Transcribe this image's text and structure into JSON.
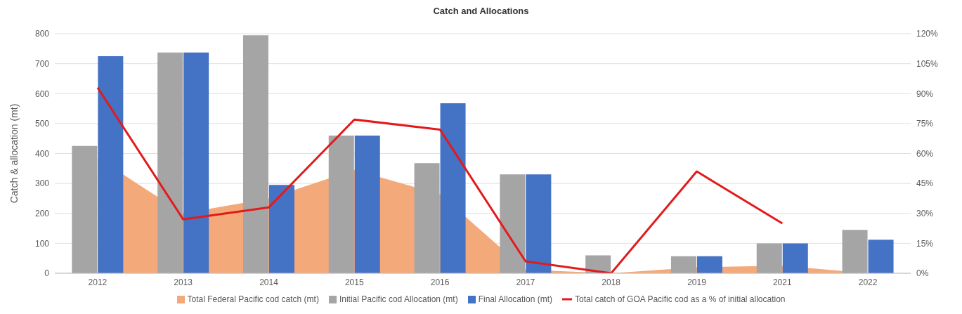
{
  "chart_data": {
    "type": "bar",
    "title": "Catch and Allocations",
    "ylabel": "Catch & allocation (mt)",
    "categories": [
      "2012",
      "2013",
      "2014",
      "2015",
      "2016",
      "2017",
      "2018",
      "2019",
      "2021",
      "2022"
    ],
    "series": [
      {
        "name": "Total Federal Pacific cod catch (mt)",
        "type": "area",
        "color": "#f4a97a",
        "values": [
          385,
          200,
          250,
          345,
          264,
          12,
          0,
          20,
          25,
          0
        ]
      },
      {
        "name": "Initial Pacific cod Allocation (mt)",
        "color": "#a5a5a5",
        "values": [
          425,
          737,
          795,
          460,
          368,
          330,
          60,
          57,
          100,
          145
        ]
      },
      {
        "name": "Final Allocation (mt)",
        "color": "#4472c4",
        "values": [
          725,
          737,
          295,
          460,
          568,
          330,
          null,
          57,
          100,
          112
        ]
      },
      {
        "name": "Total catch of GOA Pacific cod as a % of initial allocation",
        "type": "line",
        "axis": "y2",
        "color": "#e31a1c",
        "values": [
          93,
          27,
          33,
          77,
          72,
          6,
          0,
          51,
          25,
          null
        ]
      }
    ],
    "ylim": [
      0,
      800
    ],
    "yticks": [
      0,
      100,
      200,
      300,
      400,
      500,
      600,
      700,
      800
    ],
    "y2lim": [
      0,
      120
    ],
    "y2ticks": [
      {
        "value": 0,
        "label": "0%"
      },
      {
        "value": 15,
        "label": "15%"
      },
      {
        "value": 30,
        "label": "30%"
      },
      {
        "value": 45,
        "label": "45%"
      },
      {
        "value": 60,
        "label": "60%"
      },
      {
        "value": 75,
        "label": "75%"
      },
      {
        "value": 90,
        "label": "90%"
      },
      {
        "value": 105,
        "label": "105%"
      },
      {
        "value": 120,
        "label": "120%"
      }
    ],
    "grid": "y",
    "legend": "bottom",
    "marker": "none",
    "line_style": "solid"
  }
}
